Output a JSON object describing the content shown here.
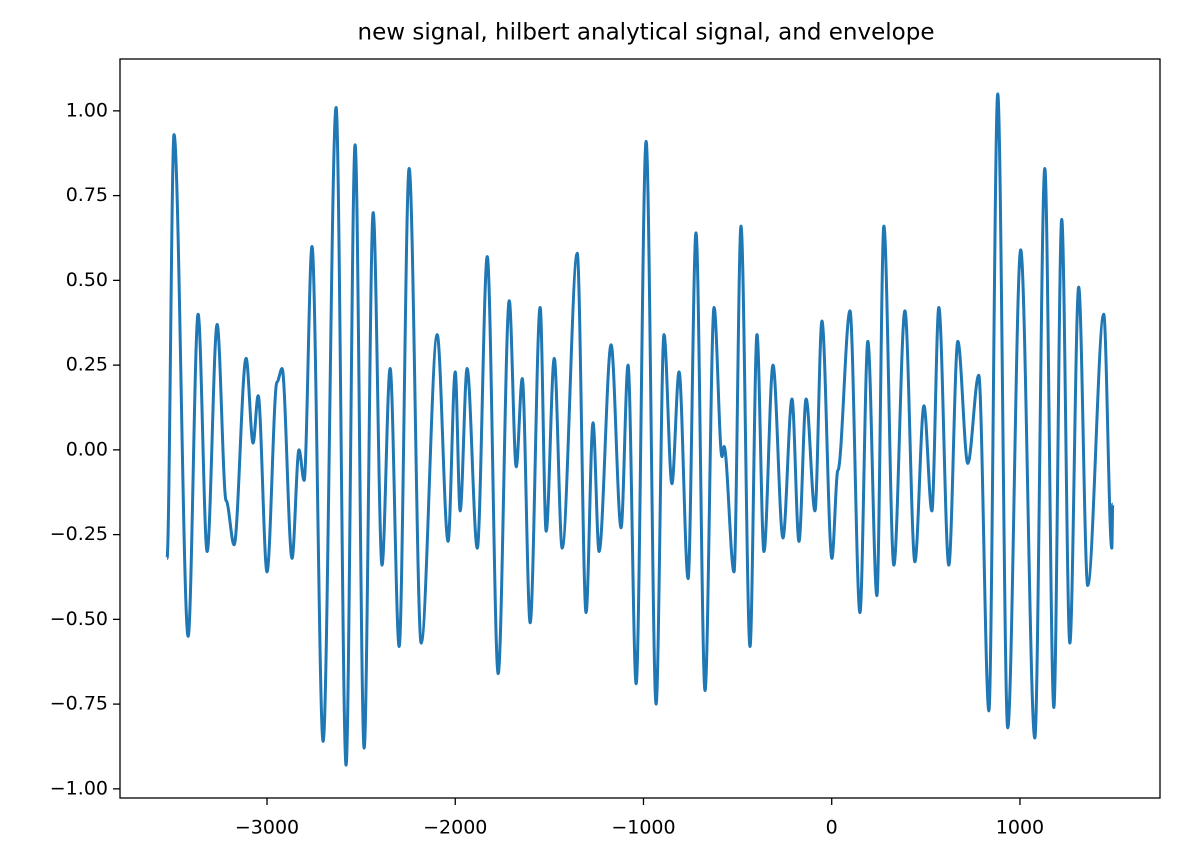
{
  "chart_data": {
    "type": "line",
    "title": "new signal, hilbert analytical signal, and envelope",
    "series": [
      {
        "color": "#1f77b4",
        "x": [
          -3531,
          -3494,
          -3419,
          -3366,
          -3318,
          -3265,
          -3217,
          -3175,
          -3111,
          -3074,
          -3047,
          -3000,
          -2947,
          -2920,
          -2867,
          -2830,
          -2803,
          -2761,
          -2702,
          -2633,
          -2580,
          -2532,
          -2484,
          -2436,
          -2389,
          -2346,
          -2298,
          -2245,
          -2181,
          -2096,
          -2038,
          -2000,
          -1974,
          -1937,
          -1883,
          -1830,
          -1772,
          -1713,
          -1676,
          -1644,
          -1602,
          -1549,
          -1517,
          -1474,
          -1432,
          -1352,
          -1305,
          -1268,
          -1236,
          -1172,
          -1119,
          -1082,
          -1039,
          -986,
          -933,
          -891,
          -849,
          -811,
          -763,
          -721,
          -673,
          -625,
          -583,
          -572,
          -519,
          -482,
          -434,
          -397,
          -360,
          -312,
          -259,
          -211,
          -174,
          -136,
          -89,
          -52,
          1,
          33,
          97,
          150,
          192,
          240,
          277,
          330,
          389,
          442,
          490,
          532,
          569,
          622,
          670,
          723,
          781,
          835,
          882,
          935,
          1004,
          1079,
          1132,
          1180,
          1222,
          1265,
          1312,
          1360,
          1445,
          1488,
          1493
        ],
        "values": [
          -0.32,
          0.93,
          -0.55,
          0.4,
          -0.3,
          0.37,
          -0.15,
          -0.28,
          0.27,
          0.02,
          0.16,
          -0.36,
          0.2,
          0.24,
          -0.32,
          0.0,
          -0.09,
          0.6,
          -0.86,
          1.01,
          -0.93,
          0.9,
          -0.88,
          0.7,
          -0.34,
          0.24,
          -0.58,
          0.83,
          -0.57,
          0.34,
          -0.27,
          0.23,
          -0.18,
          0.24,
          -0.29,
          0.57,
          -0.66,
          0.44,
          -0.05,
          0.21,
          -0.51,
          0.42,
          -0.24,
          0.27,
          -0.29,
          0.58,
          -0.48,
          0.08,
          -0.3,
          0.31,
          -0.23,
          0.25,
          -0.69,
          0.91,
          -0.75,
          0.34,
          -0.1,
          0.23,
          -0.38,
          0.64,
          -0.71,
          0.42,
          -0.02,
          0.01,
          -0.36,
          0.66,
          -0.58,
          0.34,
          -0.3,
          0.25,
          -0.26,
          0.15,
          -0.27,
          0.15,
          -0.18,
          0.38,
          -0.32,
          -0.06,
          0.41,
          -0.48,
          0.32,
          -0.43,
          0.66,
          -0.34,
          0.41,
          -0.33,
          0.13,
          -0.18,
          0.42,
          -0.34,
          0.32,
          -0.04,
          0.22,
          -0.77,
          1.05,
          -0.82,
          0.59,
          -0.85,
          0.83,
          -0.76,
          0.68,
          -0.57,
          0.48,
          -0.4,
          0.4,
          -0.29,
          -0.16
        ]
      }
    ],
    "xlim": [
      -3781,
      1744
    ],
    "xticks": [
      {
        "value": -3000,
        "label": "−3000"
      },
      {
        "value": -2000,
        "label": "−2000"
      },
      {
        "value": -1000,
        "label": "−1000"
      },
      0,
      1000
    ],
    "ylim": [
      -1.027,
      1.153
    ],
    "yticks": [
      {
        "value": -1,
        "label": "−1.00"
      },
      {
        "value": -0.75,
        "label": "−0.75"
      },
      {
        "value": -0.5,
        "label": "−0.50"
      },
      {
        "value": -0.25,
        "label": "−0.25"
      },
      {
        "value": 0,
        "label": "0.00"
      },
      0.25,
      {
        "value": 0.5,
        "label": "0.50"
      },
      0.75,
      {
        "value": 1,
        "label": "1.00"
      }
    ],
    "grid": false
  }
}
